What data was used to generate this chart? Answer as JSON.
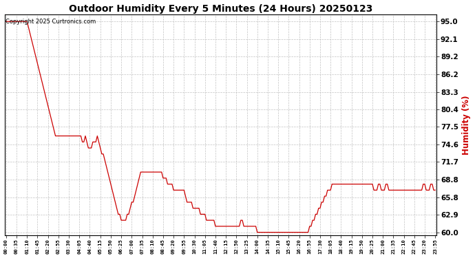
{
  "title": "Outdoor Humidity Every 5 Minutes (24 Hours) 20250123",
  "copyright": "Copyright 2025 Curtronics.com",
  "ylabel": "Humidity (%)",
  "ylabel_color": "#cc0000",
  "line_color": "#cc0000",
  "background_color": "#ffffff",
  "grid_color": "#bbbbbb",
  "ylim": [
    59.5,
    96.2
  ],
  "yticks": [
    60.0,
    62.9,
    65.8,
    68.8,
    71.7,
    74.6,
    77.5,
    80.4,
    83.3,
    86.2,
    89.2,
    92.1,
    95.0
  ],
  "tick_every_n_points": 7,
  "humidity_data": [
    95,
    95,
    95,
    95,
    95,
    95,
    95,
    95,
    95,
    95,
    95,
    95,
    95,
    95,
    95,
    94,
    93,
    92,
    91,
    90,
    89,
    88,
    87,
    86,
    85,
    84,
    83,
    82,
    81,
    80,
    79,
    78,
    77,
    76,
    76,
    76,
    76,
    76,
    76,
    76,
    76,
    76,
    76,
    76,
    76,
    76,
    76,
    76,
    76,
    76,
    76,
    75,
    75,
    76,
    75,
    74,
    74,
    74,
    75,
    75,
    75,
    76,
    75,
    74,
    73,
    73,
    72,
    71,
    70,
    69,
    68,
    67,
    66,
    65,
    64,
    63,
    63,
    62,
    62,
    62,
    62,
    63,
    63,
    64,
    65,
    65,
    66,
    67,
    68,
    69,
    70,
    70,
    70,
    70,
    70,
    70,
    70,
    70,
    70,
    70,
    70,
    70,
    70,
    70,
    70,
    69,
    69,
    69,
    68,
    68,
    68,
    68,
    67,
    67,
    67,
    67,
    67,
    67,
    67,
    67,
    66,
    65,
    65,
    65,
    65,
    64,
    64,
    64,
    64,
    64,
    63,
    63,
    63,
    63,
    62,
    62,
    62,
    62,
    62,
    62,
    61,
    61,
    61,
    61,
    61,
    61,
    61,
    61,
    61,
    61,
    61,
    61,
    61,
    61,
    61,
    61,
    61,
    62,
    62,
    61,
    61,
    61,
    61,
    61,
    61,
    61,
    61,
    61,
    60,
    60,
    60,
    60,
    60,
    60,
    60,
    60,
    60,
    60,
    60,
    60,
    60,
    60,
    60,
    60,
    60,
    60,
    60,
    60,
    60,
    60,
    60,
    60,
    60,
    60,
    60,
    60,
    60,
    60,
    60,
    60,
    60,
    60,
    60,
    61,
    61,
    62,
    62,
    63,
    63,
    64,
    64,
    65,
    65,
    66,
    66,
    67,
    67,
    67,
    68,
    68,
    68,
    68,
    68,
    68,
    68,
    68,
    68,
    68,
    68,
    68,
    68,
    68,
    68,
    68,
    68,
    68,
    68,
    68,
    68,
    68,
    68,
    68,
    68,
    68,
    68,
    68,
    67,
    67,
    67,
    68,
    68,
    67,
    67,
    67,
    68,
    68,
    67,
    67,
    67,
    67,
    67,
    67,
    67,
    67,
    67,
    67,
    67,
    67,
    67,
    67,
    67,
    67,
    67,
    67,
    67,
    67,
    67,
    67,
    67,
    68,
    68,
    67,
    67,
    67,
    68,
    68,
    67,
    67,
    67,
    67,
    68
  ]
}
